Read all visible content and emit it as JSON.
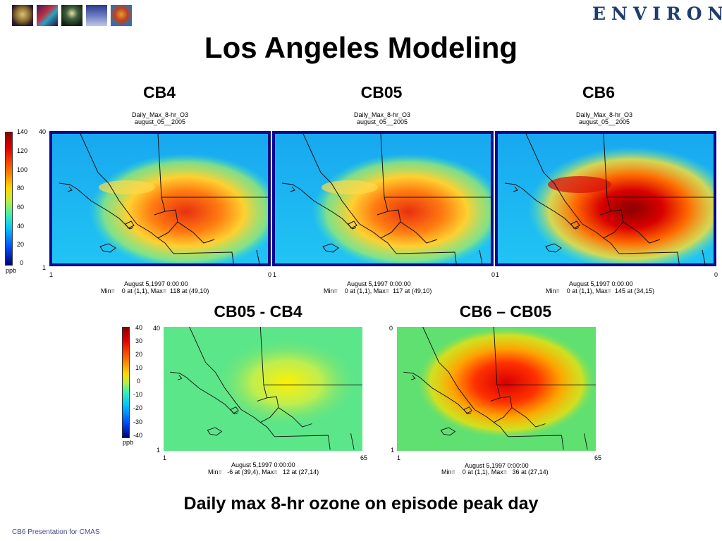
{
  "header": {
    "logo_text": "ENVIRON",
    "thumbnails": [
      "globe-photo",
      "dna-helix-photo",
      "lamp-photo",
      "ship-photo",
      "balloon-photo"
    ]
  },
  "title": "Los Angeles Modeling",
  "top_row": {
    "panels": [
      {
        "label": "CB4",
        "plot_title_1": "Daily_Max_8-hr_O3",
        "plot_title_2": "august_05__2005",
        "date": "August 5,1997 0:00:00",
        "stats": "Min=    0 at (1,1), Max=  118 at (49,10)"
      },
      {
        "label": "CB05",
        "plot_title_1": "Daily_Max_8-hr_O3",
        "plot_title_2": "august_05__2005",
        "date": "August 5,1997 0:00:00",
        "stats": "Min=    0 at (1,1), Max=  117 at (49,10)"
      },
      {
        "label": "CB6",
        "plot_title_1": "Daily_Max_8-hr_O3",
        "plot_title_2": "august_05__2005",
        "date": "August 5,1997 0:00:00",
        "stats": "Min=    0 at (1,1), Max=  145 at (34,15)"
      }
    ],
    "colorbar": {
      "ticks": [
        "140",
        "120",
        "100",
        "80",
        "60",
        "40",
        "20",
        "0"
      ],
      "unit": "ppb"
    },
    "axis": {
      "y_top": "40",
      "y_bottom": "1",
      "x_left": "1",
      "x_right": "0"
    }
  },
  "bottom_row": {
    "panels": [
      {
        "label": "CB05 - CB4",
        "date": "August 5,1997 0:00:00",
        "stats": "Min=   -6 at (39,4), Max=   12 at (27,14)"
      },
      {
        "label": "CB6 – CB05",
        "date": "August 5,1997 0:00:00",
        "stats": "Min=    0 at (1,1), Max=   36 at (27,14)"
      }
    ],
    "colorbar": {
      "ticks": [
        "40",
        "30",
        "20",
        "10",
        "0",
        "-10",
        "-20",
        "-30",
        "-40"
      ],
      "unit": "ppb"
    },
    "axis": {
      "y_top_left": "40",
      "y_top_right": "0",
      "y_bottom": "1",
      "x_left": "1",
      "x_right": "65"
    }
  },
  "caption": "Daily max 8-hr ozone on episode peak day",
  "footer": "CB6 Presentation for CMAS",
  "colors": {
    "title_text": "#000000",
    "logo": "#1e3c6e",
    "map_frame": "#0a0a8c",
    "footer": "#4a4a8a"
  }
}
